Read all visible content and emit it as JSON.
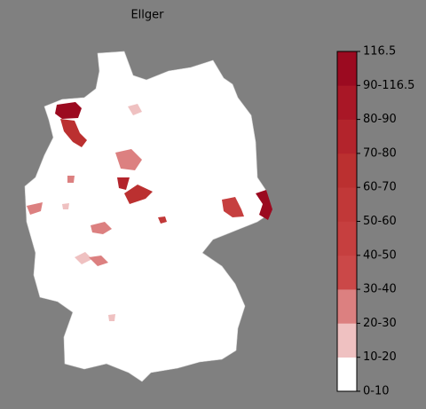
{
  "title": "Ellger",
  "colorbar": {
    "labels": [
      "0-10",
      "10-20",
      "20-30",
      "30-40",
      "40-50",
      "50-60",
      "60-70",
      "70-80",
      "80-90",
      "90-116.5",
      "116.5"
    ],
    "colors": [
      "#ffffff",
      "#efc1c1",
      "#dc8080",
      "#cb4848",
      "#c63f3f",
      "#c13838",
      "#bb3030",
      "#b3242c",
      "#a91726",
      "#9b0a20"
    ]
  }
}
